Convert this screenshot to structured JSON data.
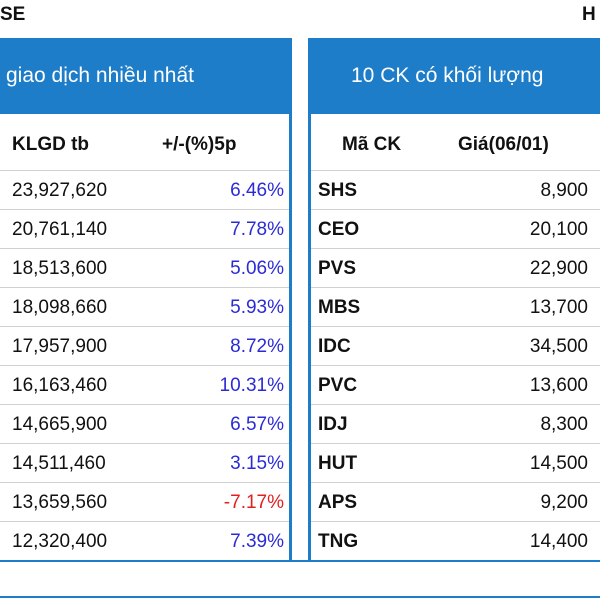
{
  "top": {
    "left_text": "SE",
    "right_text": "H"
  },
  "left_panel": {
    "title": "giao dịch nhiều nhất",
    "col_volume": "KLGD tb",
    "col_change": "+/-(%)5p",
    "rows": [
      {
        "volume": "23,927,620",
        "change": "6.46%",
        "negative": false
      },
      {
        "volume": "20,761,140",
        "change": "7.78%",
        "negative": false
      },
      {
        "volume": "18,513,600",
        "change": "5.06%",
        "negative": false
      },
      {
        "volume": "18,098,660",
        "change": "5.93%",
        "negative": false
      },
      {
        "volume": "17,957,900",
        "change": "8.72%",
        "negative": false
      },
      {
        "volume": "16,163,460",
        "change": "10.31%",
        "negative": false
      },
      {
        "volume": "14,665,900",
        "change": "6.57%",
        "negative": false
      },
      {
        "volume": "14,511,460",
        "change": "3.15%",
        "negative": false
      },
      {
        "volume": "13,659,560",
        "change": "-7.17%",
        "negative": true
      },
      {
        "volume": "12,320,400",
        "change": "7.39%",
        "negative": false
      }
    ]
  },
  "right_panel": {
    "title": "10 CK có khối lượng",
    "col_code": "Mã CK",
    "col_price": "Giá(06/01)",
    "rows": [
      {
        "code": "SHS",
        "price": "8,900"
      },
      {
        "code": "CEO",
        "price": "20,100"
      },
      {
        "code": "PVS",
        "price": "22,900"
      },
      {
        "code": "MBS",
        "price": "13,700"
      },
      {
        "code": "IDC",
        "price": "34,500"
      },
      {
        "code": "PVC",
        "price": "13,600"
      },
      {
        "code": "IDJ",
        "price": "8,300"
      },
      {
        "code": "HUT",
        "price": "14,500"
      },
      {
        "code": "APS",
        "price": "9,200"
      },
      {
        "code": "TNG",
        "price": "14,400"
      }
    ]
  },
  "colors": {
    "header_bg": "#1e7dc8",
    "positive": "#2b2bd6",
    "negative": "#e02020"
  }
}
